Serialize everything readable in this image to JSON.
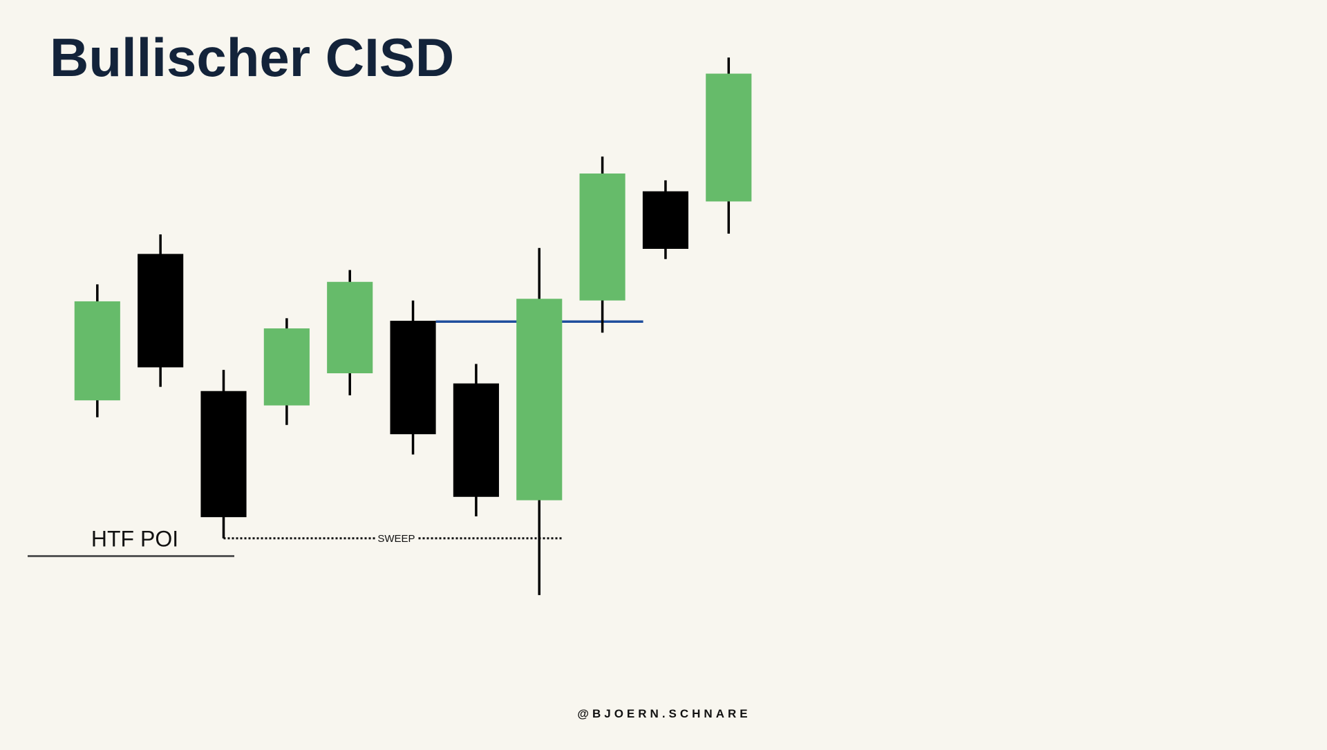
{
  "chart_data": {
    "type": "candlestick",
    "title": "Bullischer CISD",
    "credit": "@BJOERN.SCHNARE",
    "open": [
      277,
      450,
      288,
      271,
      309,
      371,
      297,
      159,
      395,
      524,
      512
    ],
    "high": [
      414,
      473,
      313,
      374,
      431,
      395,
      320,
      457,
      565,
      537,
      682
    ],
    "low": [
      257,
      293,
      114,
      248,
      283,
      213,
      140,
      47,
      357,
      444,
      474
    ],
    "close": [
      394,
      316,
      139,
      362,
      417,
      237,
      163,
      397,
      545,
      456,
      663
    ],
    "up_color": "#66bb6a",
    "down_color": "#000000",
    "ylim": [
      0,
      750
    ],
    "levels": [
      {
        "value": 370,
        "color": "#1f4e9c"
      }
    ],
    "annotations": [
      {
        "text": "SWEEP",
        "value": 114
      },
      {
        "text": "HTF POI",
        "value": 93
      }
    ]
  }
}
